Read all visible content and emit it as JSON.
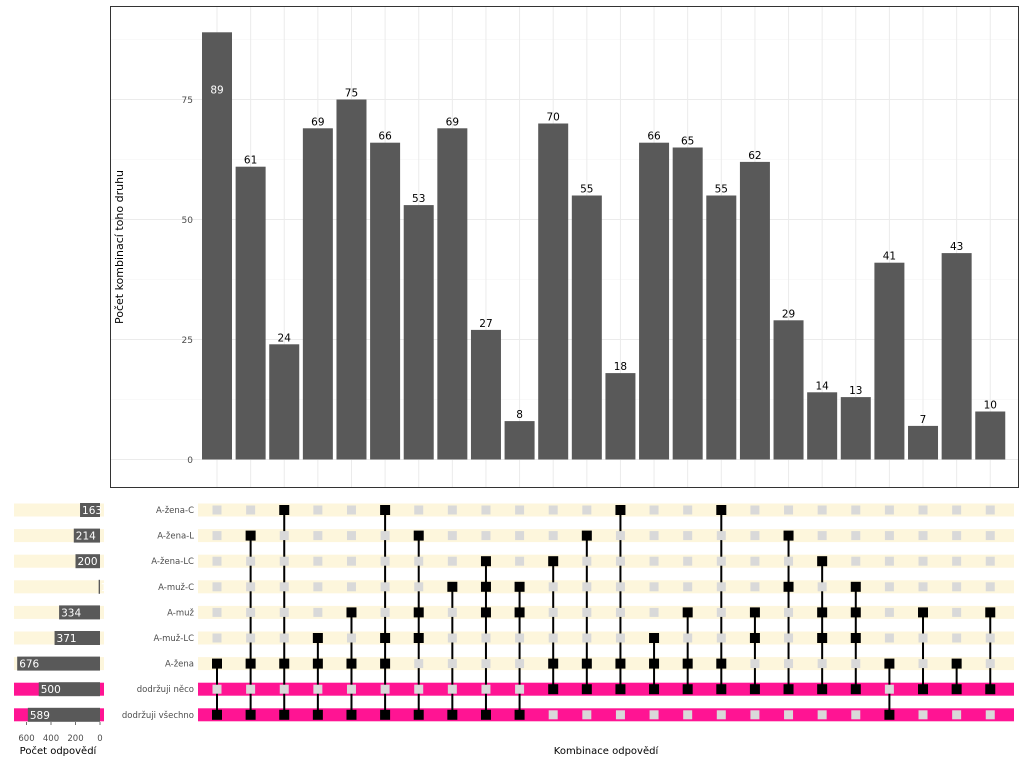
{
  "chart_data": [
    {
      "type": "bar",
      "title": "",
      "xlabel": "Kombinace odpovědí",
      "ylabel": "Počet kombinací toho druhu",
      "ylim": [
        0,
        90
      ],
      "yticks": [
        0,
        25,
        50,
        75
      ],
      "values": [
        89,
        61,
        24,
        69,
        75,
        66,
        53,
        69,
        27,
        8,
        70,
        55,
        18,
        66,
        65,
        55,
        62,
        29,
        14,
        13,
        41,
        7,
        43,
        10
      ],
      "grid": true,
      "bar_color": "#595959"
    },
    {
      "type": "bar",
      "orientation": "horizontal",
      "title": "",
      "xlabel": "Počet odpovědí",
      "xticks": [
        600,
        400,
        200,
        0
      ],
      "xlim": [
        0,
        700
      ],
      "categories": [
        "A-žena-C",
        "A-žena-L",
        "A-žena-LC",
        "A-muž-C",
        "A-muž",
        "A-muž-LC",
        "A-žena",
        "dodržuji něco",
        "dodržuji všechno"
      ],
      "values": [
        163,
        214,
        200,
        11,
        334,
        371,
        676,
        500,
        589
      ],
      "value_labels": [
        "163",
        "214",
        "200",
        "11",
        "334",
        "371",
        "676",
        "500",
        "589"
      ]
    }
  ],
  "matrix": {
    "sets": [
      "A-žena-C",
      "A-žena-L",
      "A-žena-LC",
      "A-muž-C",
      "A-muž",
      "A-muž-LC",
      "A-žena",
      "dodržuji něco",
      "dodržuji všechno"
    ],
    "highlighted_sets": [
      "dodržuji něco",
      "dodržuji všechno"
    ],
    "membership": [
      [
        6,
        8
      ],
      [
        1,
        6,
        8
      ],
      [
        0,
        6,
        8
      ],
      [
        5,
        6,
        8
      ],
      [
        4,
        6,
        8
      ],
      [
        0,
        5,
        6,
        8
      ],
      [
        1,
        4,
        5,
        8
      ],
      [
        3,
        8
      ],
      [
        2,
        3,
        4,
        8
      ],
      [
        3,
        4,
        8
      ],
      [
        2,
        6,
        7
      ],
      [
        1,
        6,
        7
      ],
      [
        0,
        6,
        7
      ],
      [
        5,
        6,
        7
      ],
      [
        4,
        6,
        7
      ],
      [
        0,
        6,
        7
      ],
      [
        4,
        5,
        7
      ],
      [
        1,
        3,
        7
      ],
      [
        2,
        4,
        5,
        7
      ],
      [
        3,
        4,
        5,
        7
      ],
      [
        6,
        8
      ],
      [
        4,
        7
      ],
      [
        6,
        7
      ],
      [
        4,
        7
      ]
    ],
    "colors": {
      "row_band": "#fdf6dc",
      "highlight_band": "#ff1493",
      "dot_on": "#000000",
      "dot_off": "#d9d9d9",
      "bar": "#595959"
    }
  }
}
